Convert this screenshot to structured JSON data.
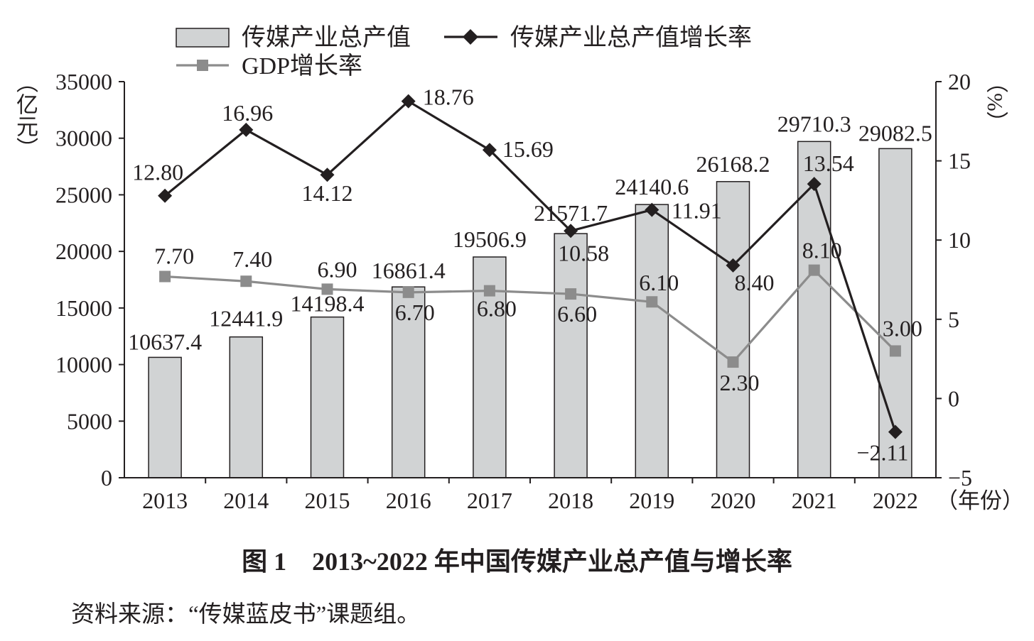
{
  "chart_data": {
    "type": "bar",
    "title": "图 1　2013~2022 年中国传媒产业总产值与增长率",
    "categories": [
      "2013",
      "2014",
      "2015",
      "2016",
      "2017",
      "2018",
      "2019",
      "2020",
      "2021",
      "2022"
    ],
    "xlabel": "（年份）",
    "y_left": {
      "label": "（亿元）",
      "range": [
        0,
        35000
      ],
      "ticks": [
        "0",
        "5000",
        "10000",
        "15000",
        "20000",
        "25000",
        "30000",
        "35000"
      ]
    },
    "y_right": {
      "label": "（%）",
      "range": [
        -5,
        20
      ],
      "ticks": [
        "−5",
        "0",
        "5",
        "10",
        "15",
        "20"
      ]
    },
    "grid": false,
    "legend_position": "top-left",
    "series": [
      {
        "name": "传媒产业总产值",
        "type": "bar",
        "axis": "left",
        "color": "#d1d3d4",
        "values": [
          10637.4,
          12441.9,
          14198.4,
          16861.4,
          19506.9,
          21571.7,
          24140.6,
          26168.2,
          29710.3,
          29082.5
        ],
        "labels": [
          "10637.4",
          "12441.9",
          "14198.4",
          "16861.4",
          "19506.9",
          "21571.7",
          "24140.6",
          "26168.2",
          "29710.3",
          "29082.5"
        ]
      },
      {
        "name": "传媒产业总产值增长率",
        "type": "line",
        "axis": "right",
        "marker": "diamond",
        "color": "#231f20",
        "values": [
          12.8,
          16.96,
          14.12,
          18.76,
          15.69,
          10.58,
          11.91,
          8.4,
          13.54,
          -2.11
        ],
        "labels": [
          "12.80",
          "16.96",
          "14.12",
          "18.76",
          "15.69",
          "10.58",
          "11.91",
          "8.40",
          "13.54",
          "−2.11"
        ]
      },
      {
        "name": "GDP增长率",
        "type": "line",
        "axis": "right",
        "marker": "square",
        "color": "#8c8c8c",
        "values": [
          7.7,
          7.4,
          6.9,
          6.7,
          6.8,
          6.6,
          6.1,
          2.3,
          8.1,
          3.0
        ],
        "labels": [
          "7.70",
          "7.40",
          "6.90",
          "6.70",
          "6.80",
          "6.60",
          "6.10",
          "2.30",
          "8.10",
          "3.00"
        ]
      }
    ]
  },
  "source": "资料来源：“传媒蓝皮书”课题组。",
  "colors": {
    "axis": "#231f20",
    "outline": "#231f20",
    "text": "#231f20"
  }
}
